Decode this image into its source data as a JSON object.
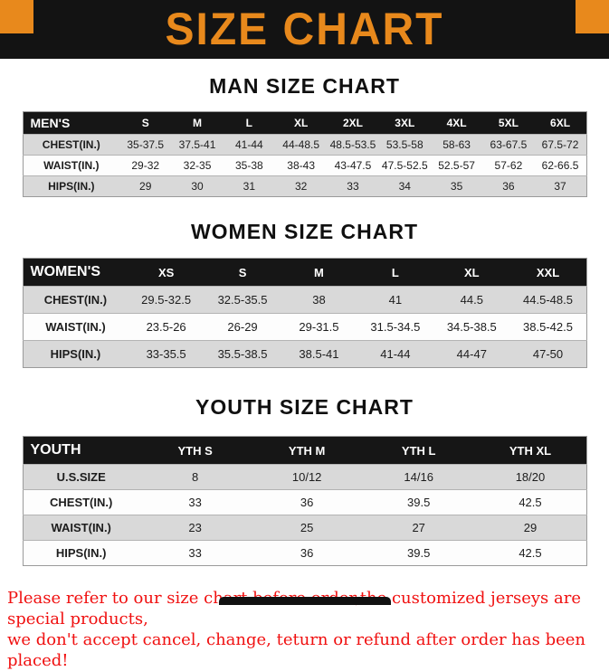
{
  "banner": {
    "title": "SIZE CHART",
    "accent_color": "#E8891C",
    "bg_color": "#131313"
  },
  "sections": [
    {
      "heading": "MAN SIZE CHART",
      "table": {
        "header": [
          "MEN'S",
          "S",
          "M",
          "L",
          "XL",
          "2XL",
          "3XL",
          "4XL",
          "5XL",
          "6XL"
        ],
        "rows": [
          [
            "CHEST(IN.)",
            "35-37.5",
            "37.5-41",
            "41-44",
            "44-48.5",
            "48.5-53.5",
            "53.5-58",
            "58-63",
            "63-67.5",
            "67.5-72"
          ],
          [
            "WAIST(IN.)",
            "29-32",
            "32-35",
            "35-38",
            "38-43",
            "43-47.5",
            "47.5-52.5",
            "52.5-57",
            "57-62",
            "62-66.5"
          ],
          [
            "HIPS(IN.)",
            "29",
            "30",
            "31",
            "32",
            "33",
            "34",
            "35",
            "36",
            "37"
          ]
        ]
      }
    },
    {
      "heading": "WOMEN SIZE CHART",
      "table": {
        "header": [
          "WOMEN'S",
          "XS",
          "S",
          "M",
          "L",
          "XL",
          "XXL"
        ],
        "rows": [
          [
            "CHEST(IN.)",
            "29.5-32.5",
            "32.5-35.5",
            "38",
            "41",
            "44.5",
            "44.5-48.5"
          ],
          [
            "WAIST(IN.)",
            "23.5-26",
            "26-29",
            "29-31.5",
            "31.5-34.5",
            "34.5-38.5",
            "38.5-42.5"
          ],
          [
            "HIPS(IN.)",
            "33-35.5",
            "35.5-38.5",
            "38.5-41",
            "41-44",
            "44-47",
            "47-50"
          ]
        ]
      }
    },
    {
      "heading": "YOUTH SIZE CHART",
      "table": {
        "header": [
          "YOUTH",
          "YTH S",
          "YTH M",
          "YTH L",
          "YTH XL"
        ],
        "rows": [
          [
            "U.S.SIZE",
            "8",
            "10/12",
            "14/16",
            "18/20"
          ],
          [
            "CHEST(IN.)",
            "33",
            "36",
            "39.5",
            "42.5"
          ],
          [
            "WAIST(IN.)",
            "23",
            "25",
            "27",
            "29"
          ],
          [
            "HIPS(IN.)",
            "33",
            "36",
            "39.5",
            "42.5"
          ]
        ]
      }
    }
  ],
  "footer": {
    "line1": "Please refer to our size chart before order,the customized jerseys are special products,",
    "line2": "we don't accept cancel, change, teturn or refund after order has been placed!",
    "color": "#f01010"
  }
}
